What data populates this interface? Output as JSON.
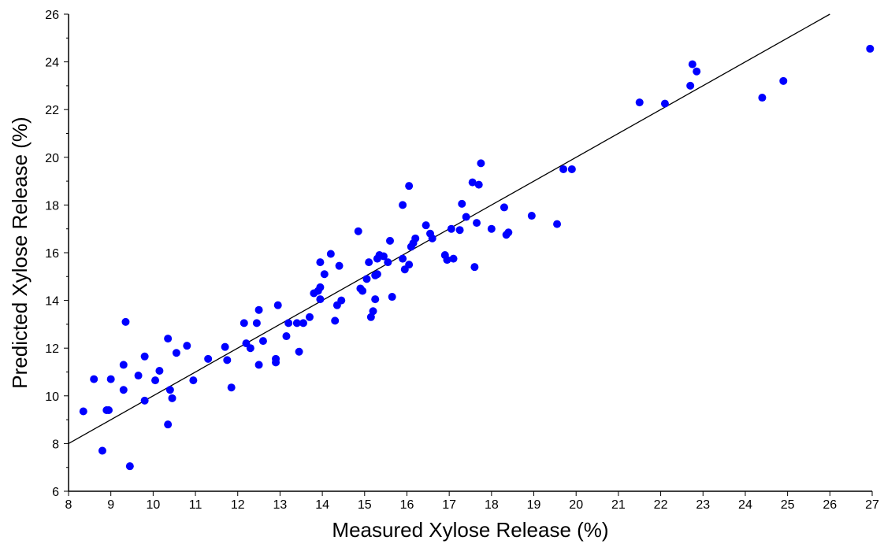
{
  "chart_data": {
    "type": "scatter",
    "title": "",
    "xlabel": "Measured Xylose Release (%)",
    "ylabel": "Predicted Xylose Release (%)",
    "xlim": [
      8,
      27
    ],
    "ylim": [
      6,
      26
    ],
    "xticks": [
      8,
      9,
      10,
      11,
      12,
      13,
      14,
      15,
      16,
      17,
      18,
      19,
      20,
      21,
      22,
      23,
      24,
      25,
      26,
      27
    ],
    "yticks": [
      6,
      8,
      10,
      12,
      14,
      16,
      18,
      20,
      22,
      24,
      26
    ],
    "grid": false,
    "legend": "none",
    "point_color": "#0000ff",
    "line_color": "#000000",
    "fit_line": {
      "x": [
        8,
        26
      ],
      "y": [
        8,
        26
      ]
    },
    "series": [
      {
        "points": [
          [
            8.35,
            9.35
          ],
          [
            8.6,
            10.7
          ],
          [
            8.8,
            7.7
          ],
          [
            8.9,
            9.4
          ],
          [
            8.95,
            9.4
          ],
          [
            9.0,
            10.7
          ],
          [
            9.3,
            11.3
          ],
          [
            9.3,
            10.25
          ],
          [
            9.35,
            13.1
          ],
          [
            9.45,
            7.05
          ],
          [
            9.65,
            10.85
          ],
          [
            9.8,
            11.65
          ],
          [
            9.8,
            9.8
          ],
          [
            10.05,
            10.65
          ],
          [
            10.15,
            11.05
          ],
          [
            10.35,
            12.4
          ],
          [
            10.35,
            8.8
          ],
          [
            10.4,
            10.25
          ],
          [
            10.45,
            9.9
          ],
          [
            10.55,
            11.8
          ],
          [
            10.8,
            12.1
          ],
          [
            10.95,
            10.65
          ],
          [
            11.3,
            11.55
          ],
          [
            11.7,
            12.05
          ],
          [
            11.75,
            11.5
          ],
          [
            11.85,
            10.35
          ],
          [
            12.15,
            13.05
          ],
          [
            12.2,
            12.2
          ],
          [
            12.3,
            12.0
          ],
          [
            12.45,
            13.05
          ],
          [
            12.5,
            13.6
          ],
          [
            12.5,
            11.3
          ],
          [
            12.6,
            12.3
          ],
          [
            12.9,
            11.55
          ],
          [
            12.9,
            11.4
          ],
          [
            12.95,
            13.8
          ],
          [
            13.15,
            12.5
          ],
          [
            13.2,
            13.05
          ],
          [
            13.4,
            13.05
          ],
          [
            13.45,
            11.85
          ],
          [
            13.55,
            13.05
          ],
          [
            13.7,
            13.3
          ],
          [
            13.8,
            14.3
          ],
          [
            13.9,
            14.4
          ],
          [
            13.95,
            14.55
          ],
          [
            13.95,
            15.6
          ],
          [
            13.95,
            14.05
          ],
          [
            14.05,
            15.1
          ],
          [
            14.2,
            15.95
          ],
          [
            14.3,
            13.15
          ],
          [
            14.35,
            13.8
          ],
          [
            14.4,
            15.45
          ],
          [
            14.45,
            14.0
          ],
          [
            14.85,
            16.9
          ],
          [
            14.9,
            14.5
          ],
          [
            14.95,
            14.4
          ],
          [
            15.05,
            14.9
          ],
          [
            15.1,
            15.6
          ],
          [
            15.15,
            13.3
          ],
          [
            15.2,
            13.55
          ],
          [
            15.25,
            15.05
          ],
          [
            15.25,
            14.05
          ],
          [
            15.3,
            15.75
          ],
          [
            15.3,
            15.1
          ],
          [
            15.35,
            15.9
          ],
          [
            15.45,
            15.85
          ],
          [
            15.55,
            15.6
          ],
          [
            15.6,
            16.5
          ],
          [
            15.65,
            14.15
          ],
          [
            15.9,
            18.0
          ],
          [
            15.9,
            15.75
          ],
          [
            15.95,
            15.3
          ],
          [
            16.05,
            15.5
          ],
          [
            16.05,
            18.8
          ],
          [
            16.1,
            16.25
          ],
          [
            16.15,
            16.4
          ],
          [
            16.2,
            16.6
          ],
          [
            16.45,
            17.15
          ],
          [
            16.55,
            16.8
          ],
          [
            16.6,
            16.6
          ],
          [
            16.9,
            15.9
          ],
          [
            16.95,
            15.7
          ],
          [
            17.05,
            17.0
          ],
          [
            17.1,
            15.75
          ],
          [
            17.25,
            16.95
          ],
          [
            17.3,
            18.05
          ],
          [
            17.4,
            17.5
          ],
          [
            17.55,
            18.95
          ],
          [
            17.6,
            15.4
          ],
          [
            17.65,
            17.25
          ],
          [
            17.7,
            18.85
          ],
          [
            17.75,
            19.75
          ],
          [
            18.0,
            17.0
          ],
          [
            18.3,
            17.9
          ],
          [
            18.35,
            16.75
          ],
          [
            18.4,
            16.85
          ],
          [
            18.95,
            17.55
          ],
          [
            19.55,
            17.2
          ],
          [
            19.7,
            19.5
          ],
          [
            19.9,
            19.5
          ],
          [
            21.5,
            22.3
          ],
          [
            22.1,
            22.25
          ],
          [
            22.7,
            23.0
          ],
          [
            22.75,
            23.9
          ],
          [
            22.85,
            23.6
          ],
          [
            24.4,
            22.5
          ],
          [
            24.9,
            23.2
          ],
          [
            26.95,
            24.55
          ]
        ]
      }
    ]
  }
}
